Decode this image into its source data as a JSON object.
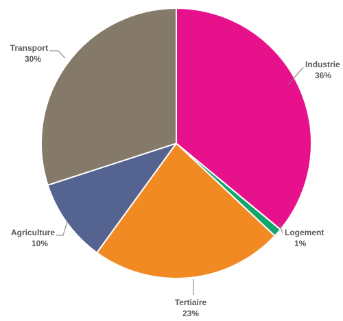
{
  "chart_data": {
    "type": "pie",
    "title": "",
    "slices": [
      {
        "label": "Industrie",
        "value": 36,
        "display": "36%",
        "color": "#e8118c"
      },
      {
        "label": "Logement",
        "value": 1,
        "display": "1%",
        "color": "#12a66c"
      },
      {
        "label": "Tertiaire",
        "value": 23,
        "display": "23%",
        "color": "#f28a24"
      },
      {
        "label": "Agriculture",
        "value": 10,
        "display": "10%",
        "color": "#556391"
      },
      {
        "label": "Transport",
        "value": 30,
        "display": "30%",
        "color": "#85796a"
      }
    ],
    "start": "12 o'clock",
    "direction": "clockwise",
    "slice_border_color": "#ffffff"
  }
}
